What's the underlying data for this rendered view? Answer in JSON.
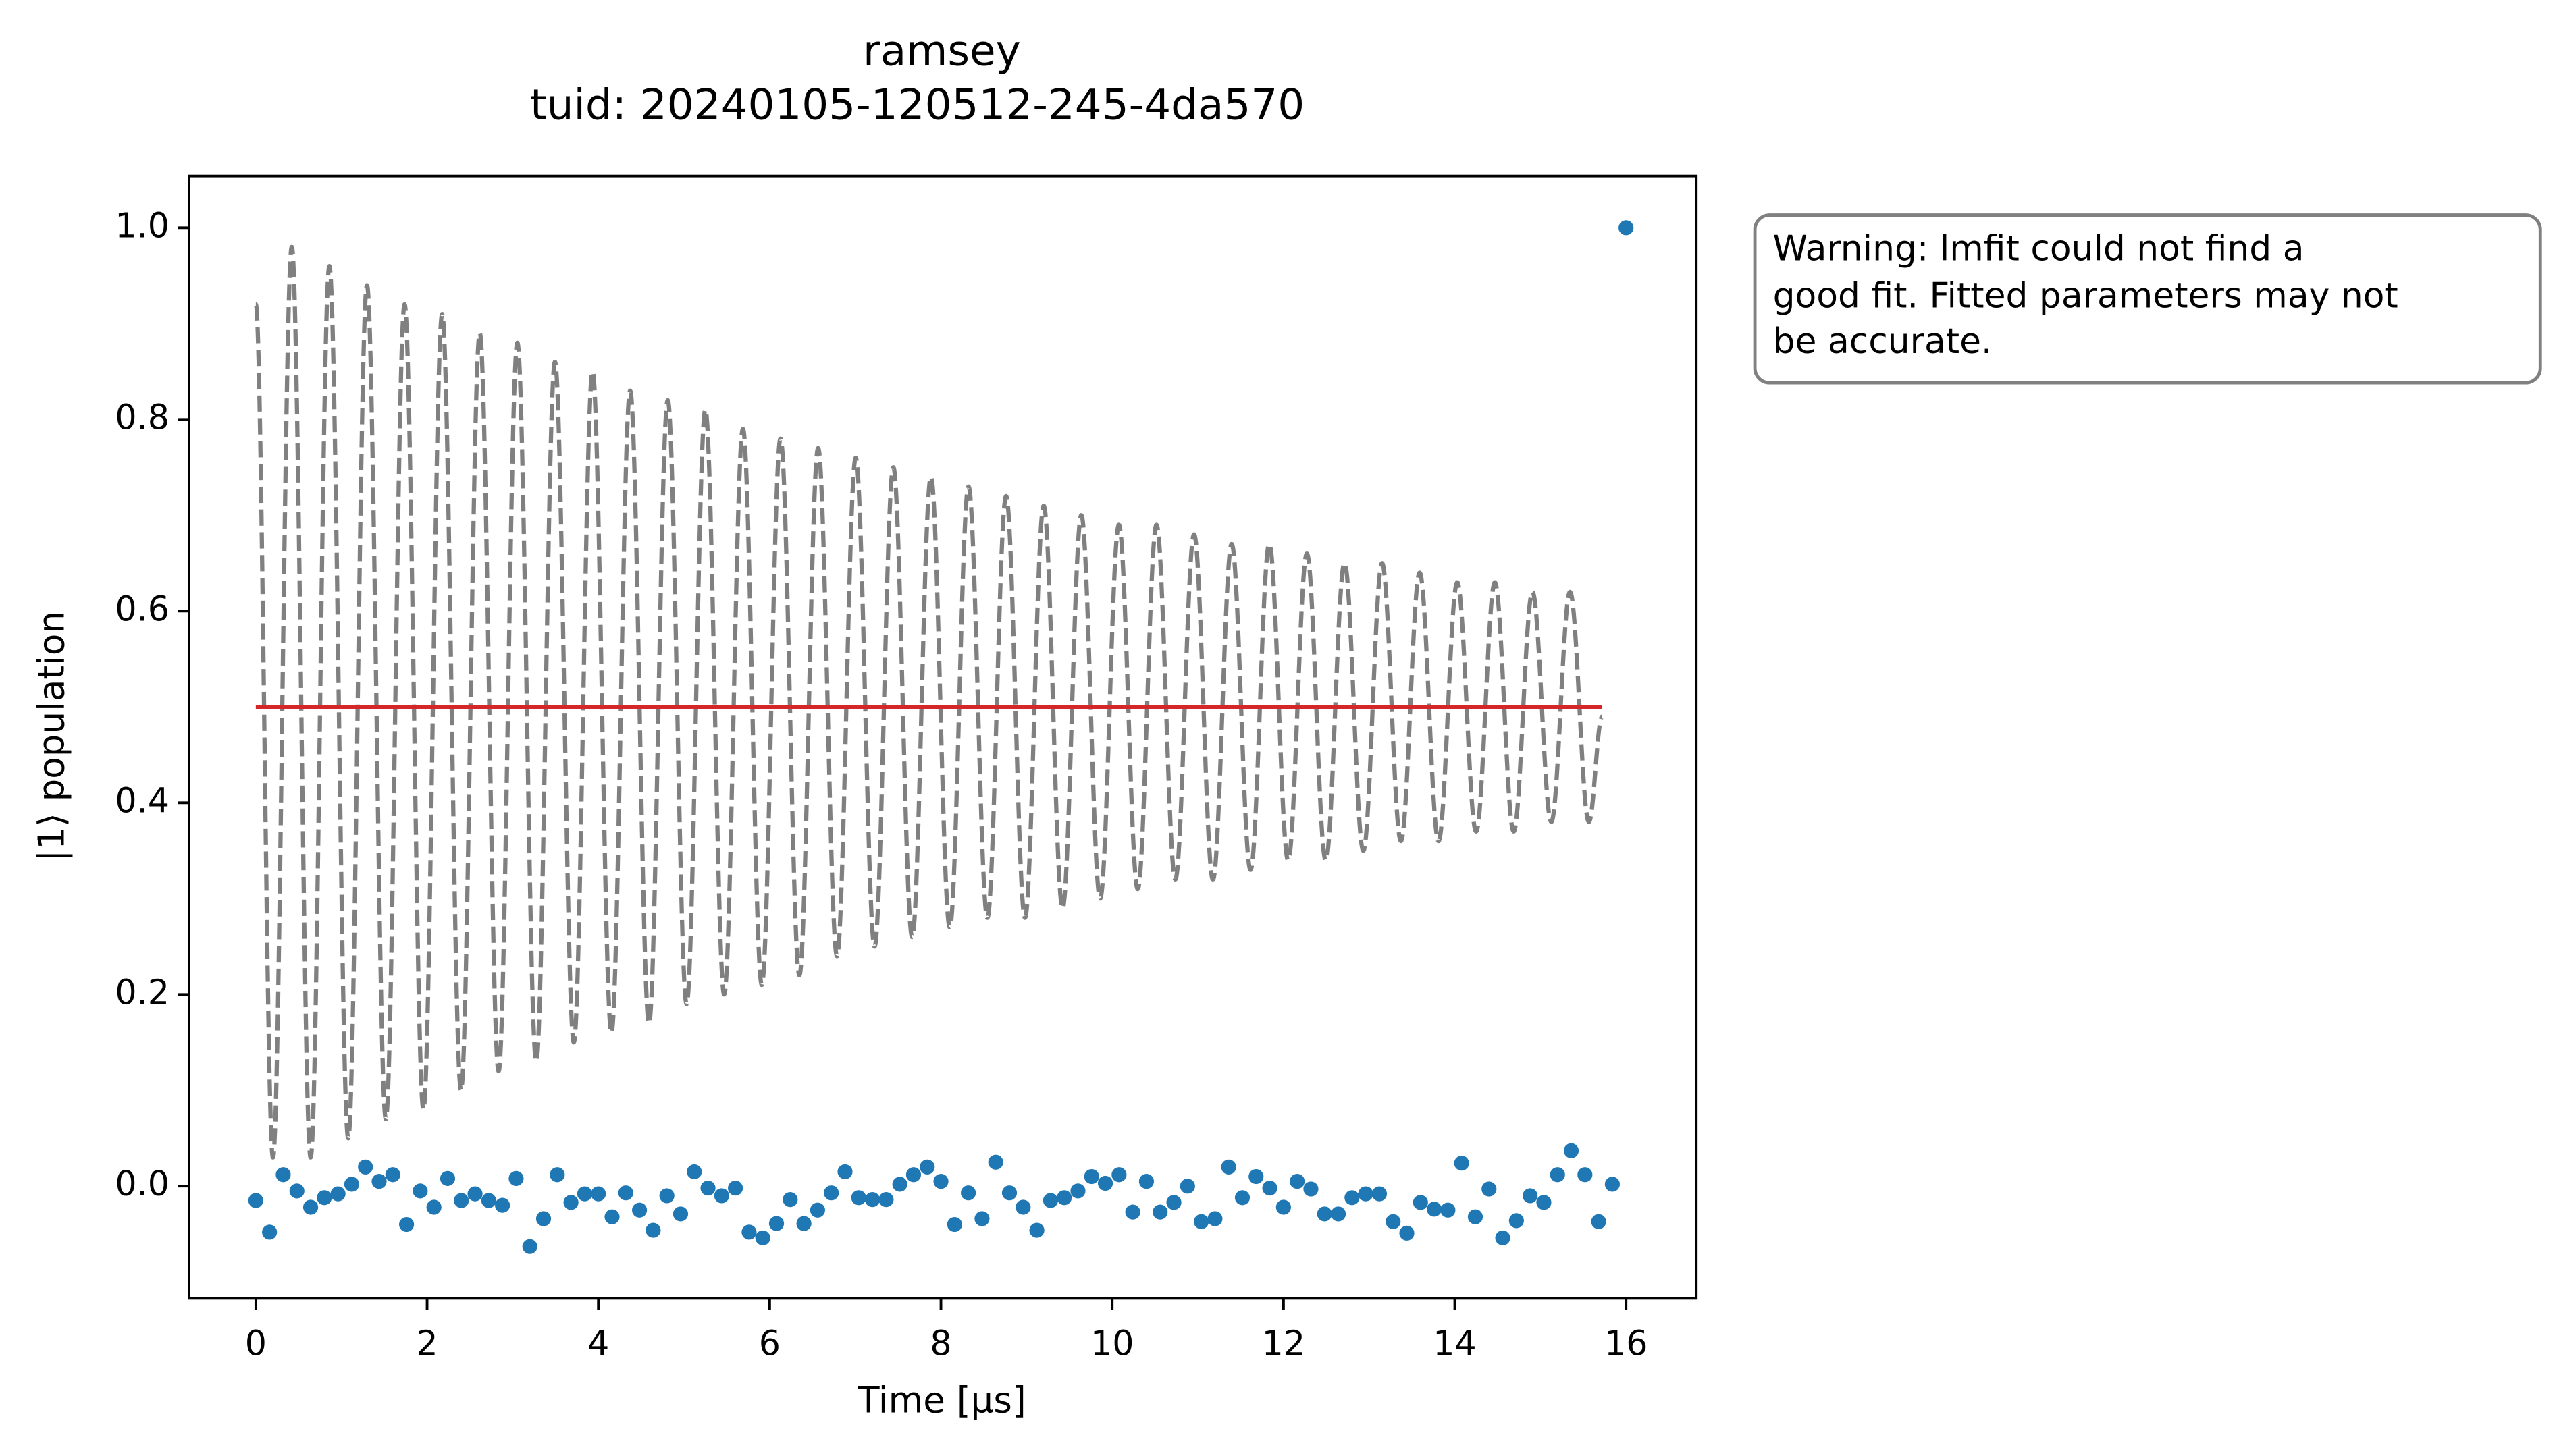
{
  "chart_data": {
    "type": "scatter",
    "title": "ramsey",
    "subtitle": "tuid: 20240105-120512-245-4da570",
    "xlabel": "Time [µs]",
    "ylabel": "|1⟩ population",
    "annotation": [
      "Warning: lmfit could not find a",
      "good fit. Fitted parameters may not",
      "be accurate."
    ],
    "xlim": [
      -0.78,
      16.82
    ],
    "ylim": [
      -0.117,
      1.054
    ],
    "xticks": [
      0,
      2,
      4,
      6,
      8,
      10,
      12,
      14,
      16
    ],
    "yticks": [
      {
        "value": 0,
        "label": "0.0"
      },
      0.2,
      0.4,
      0.6,
      0.8,
      {
        "value": 1,
        "label": "1.0"
      }
    ],
    "grid": false,
    "series": [
      {
        "type": "scatter",
        "color": "#1f77b4",
        "x": [
          0,
          0.16,
          0.32,
          0.48,
          0.64,
          0.8,
          0.96,
          1.12,
          1.28,
          1.44,
          1.6,
          1.76,
          1.92,
          2.08,
          2.24,
          2.4,
          2.56,
          2.72,
          2.88,
          3.04,
          3.2,
          3.36,
          3.52,
          3.68,
          3.84,
          4,
          4.16,
          4.32,
          4.48,
          4.64,
          4.8,
          4.96,
          5.12,
          5.28,
          5.44,
          5.6,
          5.76,
          5.92,
          6.08,
          6.24,
          6.4,
          6.56,
          6.72,
          6.88,
          7.04,
          7.2,
          7.36,
          7.52,
          7.68,
          7.84,
          8,
          8.16,
          8.32,
          8.48,
          8.64,
          8.8,
          8.96,
          9.12,
          9.28,
          9.44,
          9.6,
          9.76,
          9.92,
          10.08,
          10.24,
          10.4,
          10.56,
          10.72,
          10.88,
          11.04,
          11.2,
          11.36,
          11.52,
          11.68,
          11.84,
          12,
          12.16,
          12.32,
          12.48,
          12.64,
          12.8,
          12.96,
          13.12,
          13.28,
          13.44,
          13.6,
          13.76,
          13.92,
          14.08,
          14.24,
          14.4,
          14.56,
          14.72,
          14.88,
          15.04,
          15.2,
          15.36,
          15.52,
          15.68,
          15.84,
          16
        ],
        "values": [
          -0.015,
          -0.048,
          0.012,
          -0.005,
          -0.022,
          -0.012,
          -0.008,
          0.002,
          0.02,
          0.005,
          0.012,
          -0.04,
          -0.005,
          -0.022,
          0.008,
          -0.015,
          -0.008,
          -0.015,
          -0.02,
          0.008,
          -0.063,
          -0.034,
          0.012,
          -0.017,
          -0.008,
          -0.008,
          -0.032,
          -0.007,
          -0.025,
          -0.046,
          -0.01,
          -0.029,
          0.015,
          -0.002,
          -0.01,
          -0.002,
          -0.048,
          -0.054,
          -0.039,
          -0.014,
          -0.039,
          -0.025,
          -0.007,
          0.015,
          -0.012,
          -0.014,
          -0.014,
          0.002,
          0.012,
          0.02,
          0.005,
          -0.04,
          -0.007,
          -0.034,
          0.025,
          -0.007,
          -0.022,
          -0.046,
          -0.015,
          -0.012,
          -0.005,
          0.01,
          0.003,
          0.012,
          -0.027,
          0.005,
          -0.027,
          -0.017,
          0,
          -0.037,
          -0.034,
          0.02,
          -0.012,
          0.01,
          -0.002,
          -0.022,
          0.005,
          -0.003,
          -0.029,
          -0.029,
          -0.012,
          -0.008,
          -0.008,
          -0.037,
          -0.049,
          -0.017,
          -0.024,
          -0.025,
          0.024,
          -0.032,
          -0.003,
          -0.054,
          -0.036,
          -0.01,
          -0.017,
          0.012,
          0.037,
          0.012,
          -0.037,
          0.002,
          1.0
        ]
      },
      {
        "type": "line",
        "color": "#808080",
        "linestyle": "dashed",
        "x": [
          0,
          0.2,
          0.42,
          0.64,
          0.859,
          1.079,
          1.298,
          1.518,
          1.737,
          1.957,
          2.176,
          2.396,
          2.615,
          2.835,
          3.054,
          3.274,
          3.493,
          3.713,
          3.932,
          4.152,
          4.371,
          4.591,
          4.81,
          5.03,
          5.249,
          5.469,
          5.688,
          5.908,
          6.127,
          6.347,
          6.566,
          6.786,
          7.005,
          7.225,
          7.444,
          7.664,
          7.883,
          8.103,
          8.322,
          8.542,
          8.761,
          8.981,
          9.2,
          9.42,
          9.639,
          9.859,
          10.078,
          10.298,
          10.517,
          10.737,
          10.956,
          11.176,
          11.395,
          11.615,
          11.834,
          12.054,
          12.273,
          12.493,
          12.712,
          12.932,
          13.151,
          13.371,
          13.59,
          13.81,
          14.029,
          14.249,
          14.468,
          14.688,
          14.907,
          15.127,
          15.346,
          15.566,
          15.72
        ],
        "values": [
          0.92,
          0.03,
          0.98,
          0.03,
          0.96,
          0.05,
          0.94,
          0.07,
          0.92,
          0.08,
          0.91,
          0.1,
          0.89,
          0.12,
          0.88,
          0.13,
          0.86,
          0.15,
          0.85,
          0.16,
          0.83,
          0.17,
          0.82,
          0.19,
          0.81,
          0.2,
          0.79,
          0.21,
          0.78,
          0.22,
          0.77,
          0.24,
          0.76,
          0.25,
          0.75,
          0.26,
          0.74,
          0.27,
          0.73,
          0.28,
          0.72,
          0.28,
          0.71,
          0.29,
          0.7,
          0.3,
          0.69,
          0.31,
          0.69,
          0.32,
          0.68,
          0.32,
          0.67,
          0.33,
          0.67,
          0.34,
          0.66,
          0.34,
          0.65,
          0.35,
          0.65,
          0.36,
          0.64,
          0.36,
          0.63,
          0.37,
          0.63,
          0.37,
          0.62,
          0.38,
          0.62,
          0.38,
          0.49
        ]
      },
      {
        "type": "line",
        "color": "#d62728",
        "linestyle": "solid",
        "x": [
          0,
          15.72
        ],
        "values": [
          0.5,
          0.5
        ]
      }
    ]
  }
}
